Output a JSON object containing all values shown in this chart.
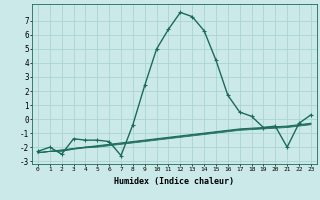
{
  "xlabel": "Humidex (Indice chaleur)",
  "background_color": "#cce9e9",
  "grid_color": "#aad4d4",
  "line_color": "#1a6b5a",
  "x_data": [
    0,
    1,
    2,
    3,
    4,
    5,
    6,
    7,
    8,
    9,
    10,
    11,
    12,
    13,
    14,
    15,
    16,
    17,
    18,
    19,
    20,
    21,
    22,
    23
  ],
  "lines": [
    {
      "y_data": [
        -2.3,
        -2.0,
        -2.5,
        -1.4,
        -1.5,
        -1.5,
        -1.6,
        -2.6,
        -0.4,
        2.4,
        5.0,
        6.4,
        7.6,
        7.3,
        6.3,
        4.2,
        1.7,
        0.5,
        0.2,
        -0.6,
        -0.5,
        -2.0,
        -0.3,
        0.3
      ],
      "color": "#1a6b5a",
      "lw": 1.0,
      "marker": "+"
    },
    {
      "y_data": [
        -2.4,
        -2.3,
        -2.2,
        -2.1,
        -2.0,
        -1.9,
        -1.8,
        -1.7,
        -1.6,
        -1.5,
        -1.4,
        -1.3,
        -1.2,
        -1.1,
        -1.0,
        -0.9,
        -0.8,
        -0.7,
        -0.65,
        -0.6,
        -0.55,
        -0.5,
        -0.4,
        -0.3
      ],
      "color": "#1a6b5a",
      "lw": 0.8,
      "marker": null
    },
    {
      "y_data": [
        -2.4,
        -2.3,
        -2.25,
        -2.1,
        -2.0,
        -1.95,
        -1.85,
        -1.75,
        -1.65,
        -1.55,
        -1.45,
        -1.35,
        -1.25,
        -1.15,
        -1.05,
        -0.95,
        -0.85,
        -0.75,
        -0.7,
        -0.65,
        -0.6,
        -0.55,
        -0.45,
        -0.35
      ],
      "color": "#1a6b5a",
      "lw": 0.7,
      "marker": null
    },
    {
      "y_data": [
        -2.4,
        -2.3,
        -2.3,
        -2.15,
        -2.05,
        -2.0,
        -1.9,
        -1.8,
        -1.7,
        -1.6,
        -1.5,
        -1.4,
        -1.3,
        -1.2,
        -1.1,
        -1.0,
        -0.9,
        -0.8,
        -0.75,
        -0.7,
        -0.65,
        -0.6,
        -0.5,
        -0.4
      ],
      "color": "#1a6b5a",
      "lw": 0.6,
      "marker": null
    }
  ],
  "xlim": [
    -0.5,
    23.5
  ],
  "ylim": [
    -3.2,
    8.2
  ],
  "yticks": [
    -3,
    -2,
    -1,
    0,
    1,
    2,
    3,
    4,
    5,
    6,
    7
  ],
  "xticks": [
    0,
    1,
    2,
    3,
    4,
    5,
    6,
    7,
    8,
    9,
    10,
    11,
    12,
    13,
    14,
    15,
    16,
    17,
    18,
    19,
    20,
    21,
    22,
    23
  ]
}
